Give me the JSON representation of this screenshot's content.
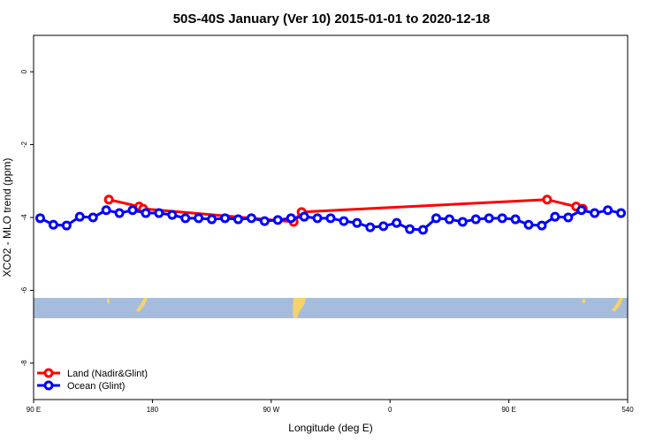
{
  "chart_data": {
    "type": "line",
    "title": "50S-40S January (Ver 10)   2015-01-01 to 2020-12-18",
    "xlabel": "Longitude (deg E)",
    "ylabel": "XCO2 - MLO trend (ppm)",
    "xlim": [
      90,
      540
    ],
    "ylim": [
      -9,
      1
    ],
    "xticks": [
      {
        "value": 90,
        "label": "90 E"
      },
      180,
      {
        "value": 270,
        "label": "90 W"
      },
      {
        "value": 360,
        "label": "0"
      },
      {
        "value": 450,
        "label": "90 E"
      },
      540
    ],
    "yticks": [
      0,
      -2,
      -4,
      -6,
      -8
    ],
    "legend": "bottom-left",
    "series": [
      {
        "name": "Land (Nadir&Glint)",
        "color": "#ff0000",
        "x": [
          147,
          170,
          173,
          287,
          293,
          479,
          501,
          506
        ],
        "values": [
          -3.51,
          -3.7,
          -3.76,
          -4.12,
          -3.85,
          -3.51,
          -3.7,
          -3.76
        ]
      },
      {
        "name": "Ocean (Glint)",
        "color": "#0000ff",
        "x": [
          95,
          105,
          115,
          125,
          135,
          145,
          155,
          165,
          175,
          185,
          195,
          205,
          215,
          225,
          235,
          245,
          255,
          265,
          275,
          285,
          295,
          305,
          315,
          325,
          335,
          345,
          355,
          365,
          375,
          385,
          395,
          405,
          415,
          425,
          435,
          445,
          455,
          465,
          475,
          485,
          495,
          505,
          515,
          525,
          535
        ],
        "values": [
          -4.02,
          -4.2,
          -4.22,
          -3.98,
          -4.0,
          -3.8,
          -3.88,
          -3.8,
          -3.88,
          -3.88,
          -3.93,
          -4.02,
          -4.02,
          -4.05,
          -4.02,
          -4.05,
          -4.02,
          -4.1,
          -4.07,
          -4.02,
          -3.98,
          -4.02,
          -4.02,
          -4.1,
          -4.15,
          -4.27,
          -4.24,
          -4.15,
          -4.32,
          -4.34,
          -4.02,
          -4.05,
          -4.12,
          -4.05,
          -4.02,
          -4.02,
          -4.05,
          -4.2,
          -4.22,
          -3.98,
          -4.0,
          -3.8,
          -3.88,
          -3.8,
          -3.88
        ]
      }
    ]
  }
}
